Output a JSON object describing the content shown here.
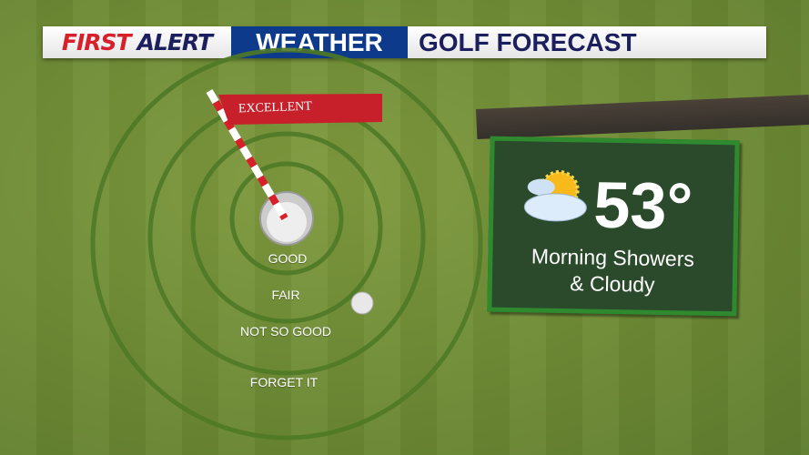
{
  "banner": {
    "first": "FIRST",
    "alert": "ALERT",
    "weather": "WEATHER",
    "title": "GOLF FORECAST"
  },
  "colors": {
    "red": "#d8202a",
    "navy": "#1c1f5e",
    "blue": "#0e3a8c",
    "grass": "#6f8c36",
    "board": "#2b4a2c"
  },
  "flag": {
    "label": "EXCELLENT"
  },
  "rings": [
    "GOOD",
    "FAIR",
    "NOT SO GOOD",
    "FORGET IT"
  ],
  "rating": "EXCELLENT",
  "forecast": {
    "icon": "partly-cloudy-icon",
    "temperature": "53°",
    "condition_line1": "Morning Showers",
    "condition_line2": "& Cloudy"
  }
}
